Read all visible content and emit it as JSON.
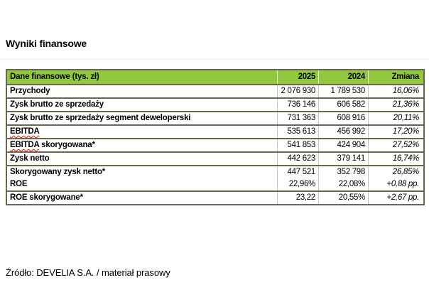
{
  "title": "Wyniki finansowe",
  "footer": {
    "source": "Źródło: DEVELIA S.A. / materiał prasowy"
  },
  "table": {
    "header": {
      "col1": "Dane finansowe (tys. zł)",
      "col2": "2025",
      "col3": "2024",
      "col4": "Zmiana"
    },
    "rows": [
      {
        "label": "Przychody",
        "v2025": "2 076 930",
        "v2024": "1 789 530",
        "change": "16,06%"
      },
      {
        "label": "Zysk brutto ze sprzedaży",
        "v2025": "736 146",
        "v2024": "606 582",
        "change": "21,36%"
      },
      {
        "label": "Zysk brutto ze sprzedaży segment deweloperski",
        "v2025": "731 363",
        "v2024": "608 916",
        "change": "20,11%"
      },
      {
        "label_word": "EBITDA",
        "label_rest": "",
        "v2025": "535 613",
        "v2024": "456 992",
        "change": "17,20%"
      },
      {
        "label_word": "EBITDA",
        "label_rest": " skorygowana*",
        "v2025": "541 853",
        "v2024": "424 904",
        "change": "27,52%"
      },
      {
        "label": "Zysk netto",
        "v2025": "442 623",
        "v2024": "379 141",
        "change": "16,74%"
      },
      {
        "label": "Skorygowany zysk netto*",
        "v2025": "447 521",
        "v2024": "352 798",
        "change": "26,85%"
      },
      {
        "label": "ROE",
        "v2025": "22,96%",
        "v2024": "22,08%",
        "change": "+0,88 pp."
      },
      {
        "label": "ROE skorygowane*",
        "v2025": "23,22",
        "v2024": "20,55%",
        "change": "+2,67 pp."
      }
    ]
  },
  "colors": {
    "header_bg": "#92c83e",
    "border_dark": "#68684f",
    "border_light": "#c6c6c6",
    "spellcheck_squiggle": "#ff0000",
    "text": "#000000"
  }
}
